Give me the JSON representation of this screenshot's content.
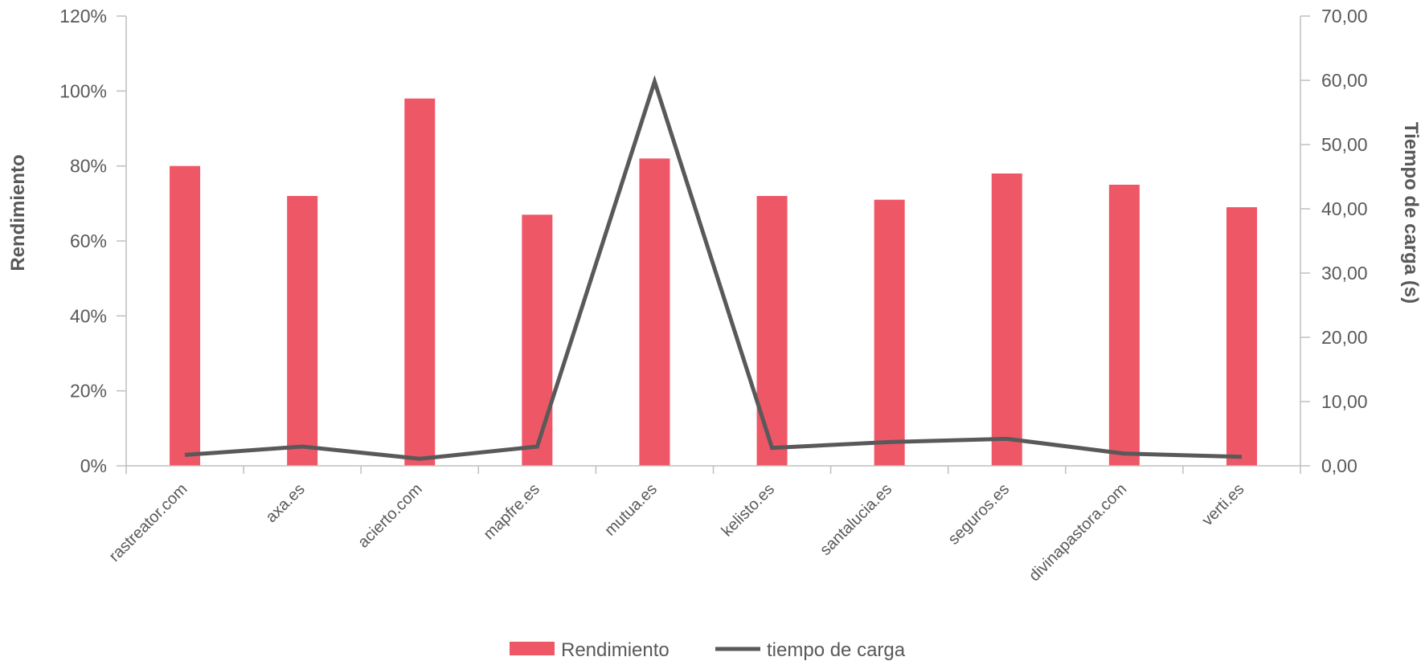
{
  "chart_data": {
    "type": "bar",
    "categories": [
      "rastreator.com",
      "axa.es",
      "acierto.com",
      "mapfre.es",
      "mutua.es",
      "kelisto.es",
      "santalucia.es",
      "seguros.es",
      "divinapastora.com",
      "verti.es"
    ],
    "series": [
      {
        "name": "Rendimiento",
        "type": "bar",
        "axis": "left",
        "color": "#ee5766",
        "values": [
          0.8,
          0.72,
          0.98,
          0.67,
          0.82,
          0.72,
          0.71,
          0.78,
          0.75,
          0.69
        ]
      },
      {
        "name": "tiempo de carga",
        "type": "line",
        "axis": "right",
        "color": "#595959",
        "values": [
          1.7,
          3.0,
          1.1,
          3.0,
          59.8,
          2.8,
          3.7,
          4.2,
          1.9,
          1.4
        ]
      }
    ],
    "ylabel": "Rendimiento",
    "y2label": "Tiempo de carga (s)",
    "ylim": [
      0,
      1.2
    ],
    "y2lim": [
      0,
      70
    ],
    "yticks": [
      "0%",
      "20%",
      "40%",
      "60%",
      "80%",
      "100%",
      "120%"
    ],
    "y2ticks": [
      "0,00",
      "10,00",
      "20,00",
      "30,00",
      "40,00",
      "50,00",
      "60,00",
      "70,00"
    ],
    "legend_position": "bottom",
    "grid": false
  }
}
